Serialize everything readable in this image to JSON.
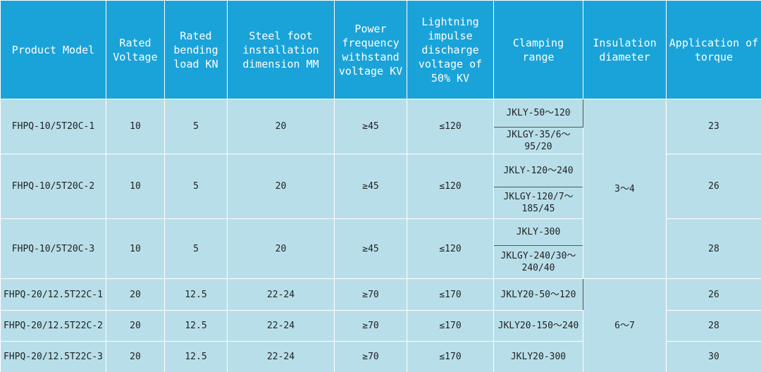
{
  "table": {
    "header": [
      "Product Model",
      "Rated Voltage",
      "Rated bending load KN",
      "Steel foot installation dimension MM",
      "Power frequency withstand voltage KV",
      "Lightning impulse discharge voltage of 50% KV",
      "Clamping range",
      "Insulation diameter",
      "Application of torque"
    ],
    "rows": [
      {
        "model": "FHPQ-10/5T20C-1",
        "voltage": "10",
        "load": "5",
        "dimension": "20",
        "power": "≥45",
        "lightning": "≤120",
        "clamping": [
          "JKLY-50～120",
          "JKLGY-35/6～95/20"
        ],
        "insulation": "3～4",
        "torque": "23"
      },
      {
        "model": "FHPQ-10/5T20C-2",
        "voltage": "10",
        "load": "5",
        "dimension": "20",
        "power": "≥45",
        "lightning": "≤120",
        "clamping": [
          "JKLY-120～240",
          "JKLGY-120/7～185/45"
        ],
        "torque": "26"
      },
      {
        "model": "FHPQ-10/5T20C-3",
        "voltage": "10",
        "load": "5",
        "dimension": "20",
        "power": "≥45",
        "lightning": "≤120",
        "clamping": [
          "JKLY-300",
          "JKLGY-240/30～240/40"
        ],
        "torque": "28"
      },
      {
        "model": "FHPQ-20/12.5T22C-1",
        "voltage": "20",
        "load": "12.5",
        "dimension": "22-24",
        "power": "≥70",
        "lightning": "≤170",
        "clamping": [
          "JKLY20-50～120"
        ],
        "insulation": "6～7",
        "torque": "26"
      },
      {
        "model": "FHPQ-20/12.5T22C-2",
        "voltage": "20",
        "load": "12.5",
        "dimension": "22-24",
        "power": "≥70",
        "lightning": "≤170",
        "clamping": [
          "JKLY20-150～240"
        ],
        "torque": "28"
      },
      {
        "model": "FHPQ-20/12.5T22C-3",
        "voltage": "20",
        "load": "12.5",
        "dimension": "22-24",
        "power": "≥70",
        "lightning": "≤170",
        "clamping": [
          "JKLY20-300"
        ],
        "torque": "30"
      }
    ]
  }
}
